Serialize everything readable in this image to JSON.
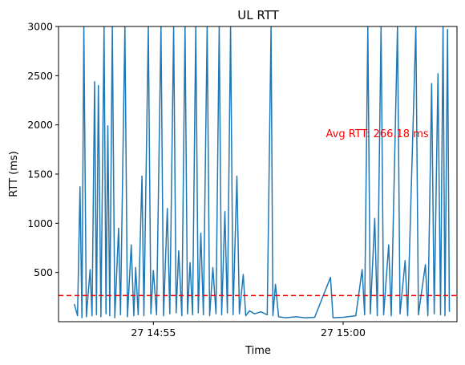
{
  "chart_data": {
    "type": "line",
    "title": "UL RTT",
    "xlabel": "Time",
    "ylabel": "RTT (ms)",
    "xlim": [
      "14:52:30",
      "15:03:00"
    ],
    "ylim": [
      0,
      3000
    ],
    "x_ticks": [
      {
        "value": "14:55:00",
        "label": "27 14:55"
      },
      {
        "value": "15:00:00",
        "label": "27 15:00"
      }
    ],
    "y_ticks": [
      {
        "value": 500,
        "label": "500"
      },
      {
        "value": 1000,
        "label": "1000"
      },
      {
        "value": 1500,
        "label": "1500"
      },
      {
        "value": 2000,
        "label": "2000"
      },
      {
        "value": 2500,
        "label": "2500"
      },
      {
        "value": 3000,
        "label": "3000"
      }
    ],
    "grid": false,
    "series": [
      {
        "color": "#1f77b4",
        "points": [
          [
            "14:52:55",
            180
          ],
          [
            "14:53:00",
            60
          ],
          [
            "14:53:04",
            1370
          ],
          [
            "14:53:07",
            40
          ],
          [
            "14:53:10",
            3000
          ],
          [
            "14:53:14",
            50
          ],
          [
            "14:53:20",
            530
          ],
          [
            "14:53:23",
            60
          ],
          [
            "14:53:27",
            2440
          ],
          [
            "14:53:30",
            70
          ],
          [
            "14:53:33",
            2400
          ],
          [
            "14:53:37",
            50
          ],
          [
            "14:53:42",
            3000
          ],
          [
            "14:53:45",
            80
          ],
          [
            "14:53:48",
            1990
          ],
          [
            "14:53:51",
            60
          ],
          [
            "14:53:55",
            3000
          ],
          [
            "14:53:59",
            40
          ],
          [
            "14:54:05",
            950
          ],
          [
            "14:54:08",
            70
          ],
          [
            "14:54:15",
            3000
          ],
          [
            "14:54:19",
            50
          ],
          [
            "14:54:25",
            780
          ],
          [
            "14:54:29",
            60
          ],
          [
            "14:54:32",
            550
          ],
          [
            "14:54:36",
            70
          ],
          [
            "14:54:42",
            1480
          ],
          [
            "14:54:45",
            60
          ],
          [
            "14:54:52",
            3000
          ],
          [
            "14:54:56",
            80
          ],
          [
            "14:55:00",
            520
          ],
          [
            "14:55:05",
            70
          ],
          [
            "14:55:12",
            3000
          ],
          [
            "14:55:16",
            60
          ],
          [
            "14:55:22",
            1150
          ],
          [
            "14:55:26",
            80
          ],
          [
            "14:55:32",
            3000
          ],
          [
            "14:55:36",
            90
          ],
          [
            "14:55:40",
            720
          ],
          [
            "14:55:45",
            60
          ],
          [
            "14:55:50",
            3000
          ],
          [
            "14:55:54",
            80
          ],
          [
            "14:55:58",
            600
          ],
          [
            "14:56:02",
            70
          ],
          [
            "14:56:07",
            3000
          ],
          [
            "14:56:11",
            90
          ],
          [
            "14:56:15",
            900
          ],
          [
            "14:56:19",
            70
          ],
          [
            "14:56:25",
            3000
          ],
          [
            "14:56:29",
            60
          ],
          [
            "14:56:34",
            550
          ],
          [
            "14:56:39",
            80
          ],
          [
            "14:56:44",
            3000
          ],
          [
            "14:56:48",
            70
          ],
          [
            "14:56:53",
            1120
          ],
          [
            "14:56:57",
            90
          ],
          [
            "14:57:02",
            3000
          ],
          [
            "14:57:06",
            70
          ],
          [
            "14:57:12",
            1480
          ],
          [
            "14:57:16",
            80
          ],
          [
            "14:57:22",
            480
          ],
          [
            "14:57:26",
            60
          ],
          [
            "14:57:32",
            110
          ],
          [
            "14:57:40",
            80
          ],
          [
            "14:57:50",
            100
          ],
          [
            "14:58:00",
            70
          ],
          [
            "14:58:06",
            3000
          ],
          [
            "14:58:09",
            60
          ],
          [
            "14:58:13",
            380
          ],
          [
            "14:58:18",
            50
          ],
          [
            "14:58:30",
            40
          ],
          [
            "14:58:45",
            50
          ],
          [
            "14:59:00",
            40
          ],
          [
            "14:59:15",
            45
          ],
          [
            "14:59:40",
            450
          ],
          [
            "14:59:44",
            40
          ],
          [
            "15:00:00",
            45
          ],
          [
            "15:00:20",
            60
          ],
          [
            "15:00:30",
            530
          ],
          [
            "15:00:34",
            70
          ],
          [
            "15:00:39",
            3000
          ],
          [
            "15:00:43",
            80
          ],
          [
            "15:00:50",
            1050
          ],
          [
            "15:00:54",
            60
          ],
          [
            "15:01:00",
            3000
          ],
          [
            "15:01:04",
            70
          ],
          [
            "15:01:12",
            780
          ],
          [
            "15:01:16",
            60
          ],
          [
            "15:01:26",
            3000
          ],
          [
            "15:01:30",
            80
          ],
          [
            "15:01:38",
            620
          ],
          [
            "15:01:42",
            60
          ],
          [
            "15:01:55",
            3000
          ],
          [
            "15:01:59",
            70
          ],
          [
            "15:02:10",
            580
          ],
          [
            "15:02:14",
            60
          ],
          [
            "15:02:20",
            2420
          ],
          [
            "15:02:24",
            80
          ],
          [
            "15:02:30",
            2520
          ],
          [
            "15:02:34",
            70
          ],
          [
            "15:02:38",
            3000
          ],
          [
            "15:02:41",
            60
          ],
          [
            "15:02:45",
            2970
          ],
          [
            "15:02:48",
            100
          ]
        ]
      }
    ],
    "average_line": {
      "value": 266.18,
      "color": "#ff0000",
      "style": "dashed"
    },
    "annotation": {
      "text": "Avg RTT: 266.18 ms",
      "x": "15:00:54",
      "y": 1910,
      "color": "#ff0000"
    }
  }
}
